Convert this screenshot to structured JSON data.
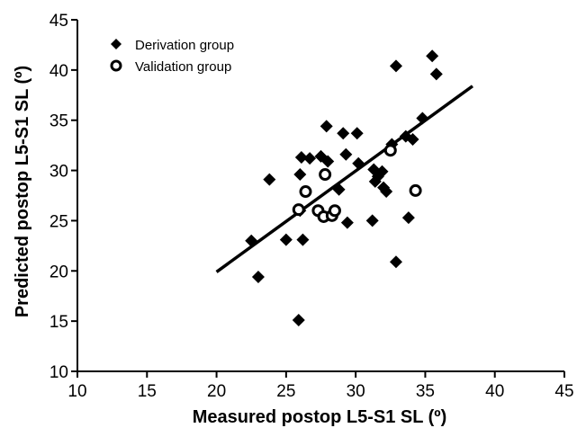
{
  "chart_data": {
    "type": "scatter",
    "title": "",
    "xlabel": "Measured postop L5-S1 SL (º)",
    "ylabel": "Predicted postop L5-S1 SL (º)",
    "xlim": [
      10,
      45
    ],
    "ylim": [
      10,
      45
    ],
    "xticks": [
      "10",
      "15",
      "20",
      "25",
      "30",
      "35",
      "40",
      "45"
    ],
    "yticks": [
      "10",
      "15",
      "20",
      "25",
      "30",
      "35",
      "40",
      "45"
    ],
    "grid": false,
    "legend_position": "top-left",
    "series": [
      {
        "name": "Derivation group",
        "marker": "diamond",
        "color": "#000000",
        "points": [
          [
            22.5,
            23.0
          ],
          [
            23.0,
            19.4
          ],
          [
            23.8,
            29.1
          ],
          [
            25.0,
            23.1
          ],
          [
            25.9,
            15.1
          ],
          [
            26.0,
            29.6
          ],
          [
            26.0,
            26.0
          ],
          [
            26.1,
            31.3
          ],
          [
            26.2,
            23.1
          ],
          [
            26.7,
            31.2
          ],
          [
            27.3,
            26.0
          ],
          [
            27.5,
            31.4
          ],
          [
            27.9,
            34.4
          ],
          [
            28.0,
            30.9
          ],
          [
            28.8,
            28.1
          ],
          [
            29.1,
            33.7
          ],
          [
            29.3,
            31.6
          ],
          [
            29.4,
            24.8
          ],
          [
            30.1,
            33.7
          ],
          [
            30.2,
            30.7
          ],
          [
            31.2,
            25.0
          ],
          [
            31.3,
            30.1
          ],
          [
            31.4,
            28.9
          ],
          [
            31.6,
            29.4
          ],
          [
            31.9,
            29.9
          ],
          [
            32.0,
            28.3
          ],
          [
            32.2,
            27.9
          ],
          [
            32.6,
            32.6
          ],
          [
            32.9,
            40.4
          ],
          [
            32.9,
            20.9
          ],
          [
            33.6,
            33.4
          ],
          [
            33.8,
            25.3
          ],
          [
            34.1,
            33.1
          ],
          [
            34.8,
            35.2
          ],
          [
            35.5,
            41.4
          ],
          [
            35.8,
            39.6
          ]
        ]
      },
      {
        "name": "Validation group",
        "marker": "open-circle",
        "color": "#000000",
        "points": [
          [
            25.9,
            26.1
          ],
          [
            26.4,
            27.9
          ],
          [
            27.3,
            26.0
          ],
          [
            27.7,
            25.4
          ],
          [
            27.8,
            29.6
          ],
          [
            28.3,
            25.5
          ],
          [
            28.5,
            26.0
          ],
          [
            32.5,
            32.0
          ],
          [
            34.3,
            28.0
          ]
        ]
      }
    ],
    "regression_line": {
      "x": [
        20.0,
        38.4
      ],
      "y": [
        19.9,
        38.4
      ]
    }
  }
}
